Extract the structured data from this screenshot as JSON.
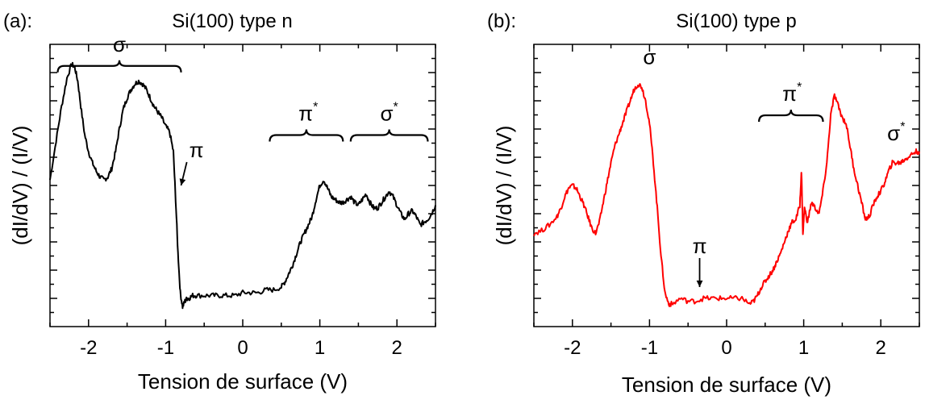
{
  "chart_data": [
    {
      "type": "line",
      "panel_label": "(a):",
      "title": "Si(100) type n",
      "xlabel": "Tension de surface (V)",
      "ylabel": "(dI/dV) / (I/V)",
      "xlim": [
        -2.5,
        2.5
      ],
      "ylim": [
        0,
        1
      ],
      "x_ticks": [
        -2,
        -1,
        0,
        1,
        2
      ],
      "x_tick_labels": [
        "-2",
        "-1",
        "0",
        "1",
        "2"
      ],
      "y_tick_labels_visible": false,
      "grid": false,
      "series": [
        {
          "color": "#000000",
          "x": [
            -2.5,
            -2.42,
            -2.35,
            -2.28,
            -2.22,
            -2.18,
            -2.14,
            -2.1,
            -2.05,
            -2.0,
            -1.95,
            -1.9,
            -1.85,
            -1.8,
            -1.75,
            -1.7,
            -1.65,
            -1.6,
            -1.55,
            -1.5,
            -1.45,
            -1.4,
            -1.35,
            -1.3,
            -1.25,
            -1.2,
            -1.15,
            -1.1,
            -1.05,
            -1.0,
            -0.95,
            -0.9,
            -0.87,
            -0.84,
            -0.81,
            -0.78,
            -0.75,
            -0.72,
            -0.7,
            -0.65,
            -0.6,
            -0.5,
            -0.4,
            -0.3,
            -0.2,
            -0.1,
            0.0,
            0.1,
            0.2,
            0.3,
            0.4,
            0.5,
            0.55,
            0.6,
            0.65,
            0.7,
            0.75,
            0.8,
            0.85,
            0.9,
            0.95,
            1.0,
            1.05,
            1.1,
            1.15,
            1.2,
            1.25,
            1.3,
            1.35,
            1.4,
            1.45,
            1.5,
            1.55,
            1.6,
            1.65,
            1.7,
            1.75,
            1.8,
            1.85,
            1.9,
            1.95,
            2.0,
            2.05,
            2.1,
            2.15,
            2.2,
            2.25,
            2.3,
            2.35,
            2.4,
            2.45,
            2.5
          ],
          "y": [
            0.52,
            0.66,
            0.78,
            0.88,
            0.93,
            0.92,
            0.87,
            0.78,
            0.68,
            0.62,
            0.58,
            0.55,
            0.53,
            0.52,
            0.53,
            0.56,
            0.62,
            0.7,
            0.77,
            0.81,
            0.84,
            0.86,
            0.87,
            0.86,
            0.84,
            0.81,
            0.78,
            0.76,
            0.74,
            0.71,
            0.69,
            0.62,
            0.45,
            0.26,
            0.12,
            0.07,
            0.09,
            0.1,
            0.1,
            0.11,
            0.11,
            0.11,
            0.11,
            0.11,
            0.11,
            0.11,
            0.12,
            0.12,
            0.12,
            0.13,
            0.13,
            0.14,
            0.16,
            0.19,
            0.22,
            0.26,
            0.3,
            0.33,
            0.36,
            0.39,
            0.45,
            0.5,
            0.52,
            0.49,
            0.46,
            0.45,
            0.44,
            0.44,
            0.45,
            0.46,
            0.44,
            0.43,
            0.45,
            0.47,
            0.44,
            0.42,
            0.42,
            0.44,
            0.46,
            0.48,
            0.46,
            0.43,
            0.4,
            0.38,
            0.4,
            0.41,
            0.39,
            0.36,
            0.37,
            0.38,
            0.4,
            0.43
          ]
        }
      ],
      "annotations": [
        {
          "text": "σ",
          "sup": "",
          "x": -1.6,
          "y": 0.975,
          "kind": "brace",
          "from": -2.4,
          "to": -0.8
        },
        {
          "text": "π",
          "sup": "*",
          "x": 0.85,
          "y": 0.73,
          "kind": "brace",
          "from": 0.35,
          "to": 1.3
        },
        {
          "text": "σ",
          "sup": "*",
          "x": 1.9,
          "y": 0.73,
          "kind": "brace",
          "from": 1.4,
          "to": 2.4
        },
        {
          "text": "π",
          "sup": "",
          "x": -0.6,
          "y": 0.6,
          "kind": "arrow",
          "to_x": -0.8,
          "to_y": 0.5
        }
      ]
    },
    {
      "type": "line",
      "panel_label": "(b):",
      "title": "Si(100) type p",
      "xlabel": "Tension de surface (V)",
      "ylabel": "(dI/dV) / (I/V)",
      "xlim": [
        -2.5,
        2.5
      ],
      "ylim": [
        0,
        1
      ],
      "x_ticks": [
        -2,
        -1,
        0,
        1,
        2
      ],
      "x_tick_labels": [
        "-2",
        "-1",
        "0",
        "1",
        "2"
      ],
      "y_tick_labels_visible": false,
      "grid": false,
      "series": [
        {
          "color": "#ff0000",
          "x": [
            -2.5,
            -2.4,
            -2.3,
            -2.2,
            -2.15,
            -2.1,
            -2.05,
            -2.0,
            -1.95,
            -1.9,
            -1.85,
            -1.8,
            -1.75,
            -1.7,
            -1.65,
            -1.6,
            -1.55,
            -1.5,
            -1.45,
            -1.4,
            -1.35,
            -1.3,
            -1.25,
            -1.2,
            -1.15,
            -1.1,
            -1.05,
            -1.0,
            -0.95,
            -0.9,
            -0.85,
            -0.8,
            -0.75,
            -0.7,
            -0.6,
            -0.5,
            -0.4,
            -0.3,
            -0.2,
            -0.1,
            0.0,
            0.1,
            0.2,
            0.3,
            0.35,
            0.4,
            0.45,
            0.5,
            0.55,
            0.6,
            0.65,
            0.7,
            0.75,
            0.8,
            0.85,
            0.9,
            0.95,
            0.97,
            0.99,
            1.01,
            1.05,
            1.1,
            1.15,
            1.2,
            1.25,
            1.3,
            1.35,
            1.4,
            1.45,
            1.5,
            1.55,
            1.6,
            1.65,
            1.7,
            1.75,
            1.8,
            1.85,
            1.9,
            1.95,
            2.0,
            2.05,
            2.1,
            2.15,
            2.2,
            2.25,
            2.3,
            2.35,
            2.4,
            2.45,
            2.5
          ],
          "y": [
            0.33,
            0.34,
            0.36,
            0.39,
            0.42,
            0.46,
            0.49,
            0.5,
            0.49,
            0.46,
            0.43,
            0.39,
            0.35,
            0.33,
            0.37,
            0.44,
            0.51,
            0.58,
            0.64,
            0.68,
            0.72,
            0.76,
            0.8,
            0.84,
            0.86,
            0.85,
            0.8,
            0.72,
            0.58,
            0.42,
            0.25,
            0.12,
            0.08,
            0.08,
            0.1,
            0.09,
            0.09,
            0.1,
            0.1,
            0.1,
            0.1,
            0.1,
            0.1,
            0.08,
            0.09,
            0.11,
            0.14,
            0.16,
            0.18,
            0.2,
            0.23,
            0.26,
            0.3,
            0.34,
            0.37,
            0.38,
            0.43,
            0.55,
            0.33,
            0.42,
            0.37,
            0.44,
            0.42,
            0.4,
            0.48,
            0.58,
            0.75,
            0.82,
            0.78,
            0.74,
            0.72,
            0.64,
            0.56,
            0.5,
            0.44,
            0.38,
            0.39,
            0.43,
            0.46,
            0.48,
            0.51,
            0.55,
            0.58,
            0.58,
            0.58,
            0.59,
            0.6,
            0.61,
            0.62,
            0.62
          ]
        }
      ],
      "annotations": [
        {
          "text": "σ",
          "sup": "",
          "x": -1.0,
          "y": 0.93,
          "kind": "label"
        },
        {
          "text": "π",
          "sup": "*",
          "x": 0.85,
          "y": 0.8,
          "kind": "brace",
          "from": 0.42,
          "to": 1.25
        },
        {
          "text": "σ",
          "sup": "*",
          "x": 2.2,
          "y": 0.66,
          "kind": "label"
        },
        {
          "text": "π",
          "sup": "",
          "x": -0.35,
          "y": 0.26,
          "kind": "arrow",
          "to_x": -0.35,
          "to_y": 0.14
        }
      ]
    }
  ]
}
